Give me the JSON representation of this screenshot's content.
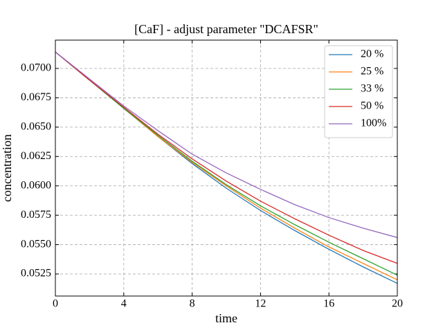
{
  "chart_data": {
    "type": "line",
    "title": "[CaF] - adjust parameter \"DCAFSR\"",
    "x_label": "time",
    "y_label": "concentration",
    "x": [
      0,
      2,
      4,
      6,
      8,
      10,
      12,
      14,
      16,
      18,
      20
    ],
    "series": [
      {
        "name": "20 %",
        "color": "#1f77b4",
        "values": [
          0.0714,
          0.069,
          0.0666,
          0.0642,
          0.0619,
          0.0598,
          0.0579,
          0.0562,
          0.0546,
          0.0531,
          0.0517
        ]
      },
      {
        "name": "25 %",
        "color": "#ff7f0e",
        "values": [
          0.0714,
          0.069,
          0.0666,
          0.0642,
          0.062,
          0.06,
          0.0581,
          0.0564,
          0.0548,
          0.0534,
          0.052
        ]
      },
      {
        "name": "33 %",
        "color": "#2ca02c",
        "values": [
          0.0714,
          0.069,
          0.0666,
          0.0643,
          0.0621,
          0.0601,
          0.0583,
          0.0567,
          0.0552,
          0.0538,
          0.0524
        ]
      },
      {
        "name": "50 %",
        "color": "#d62728",
        "values": [
          0.0714,
          0.069,
          0.0667,
          0.0644,
          0.0623,
          0.0604,
          0.0587,
          0.0572,
          0.0558,
          0.0545,
          0.0534
        ]
      },
      {
        "name": "100%",
        "color": "#9467bd",
        "values": [
          0.0714,
          0.0691,
          0.0668,
          0.0647,
          0.0627,
          0.0611,
          0.0597,
          0.0584,
          0.0573,
          0.0564,
          0.0556
        ]
      }
    ],
    "xlim": [
      0,
      20
    ],
    "xticks": [
      0,
      4,
      8,
      12,
      16,
      20
    ],
    "ylim": [
      0.05062,
      0.07241
    ],
    "yticks": [
      {
        "value": 0.0525,
        "label": "0.0525"
      },
      {
        "value": 0.055,
        "label": "0.0550"
      },
      {
        "value": 0.0575,
        "label": "0.0575"
      },
      {
        "value": 0.06,
        "label": "0.0600"
      },
      {
        "value": 0.0625,
        "label": "0.0625"
      },
      {
        "value": 0.065,
        "label": "0.0650"
      },
      {
        "value": 0.0675,
        "label": "0.0675"
      },
      {
        "value": 0.07,
        "label": "0.0700"
      }
    ],
    "grid": true,
    "legend": "upper-right"
  }
}
